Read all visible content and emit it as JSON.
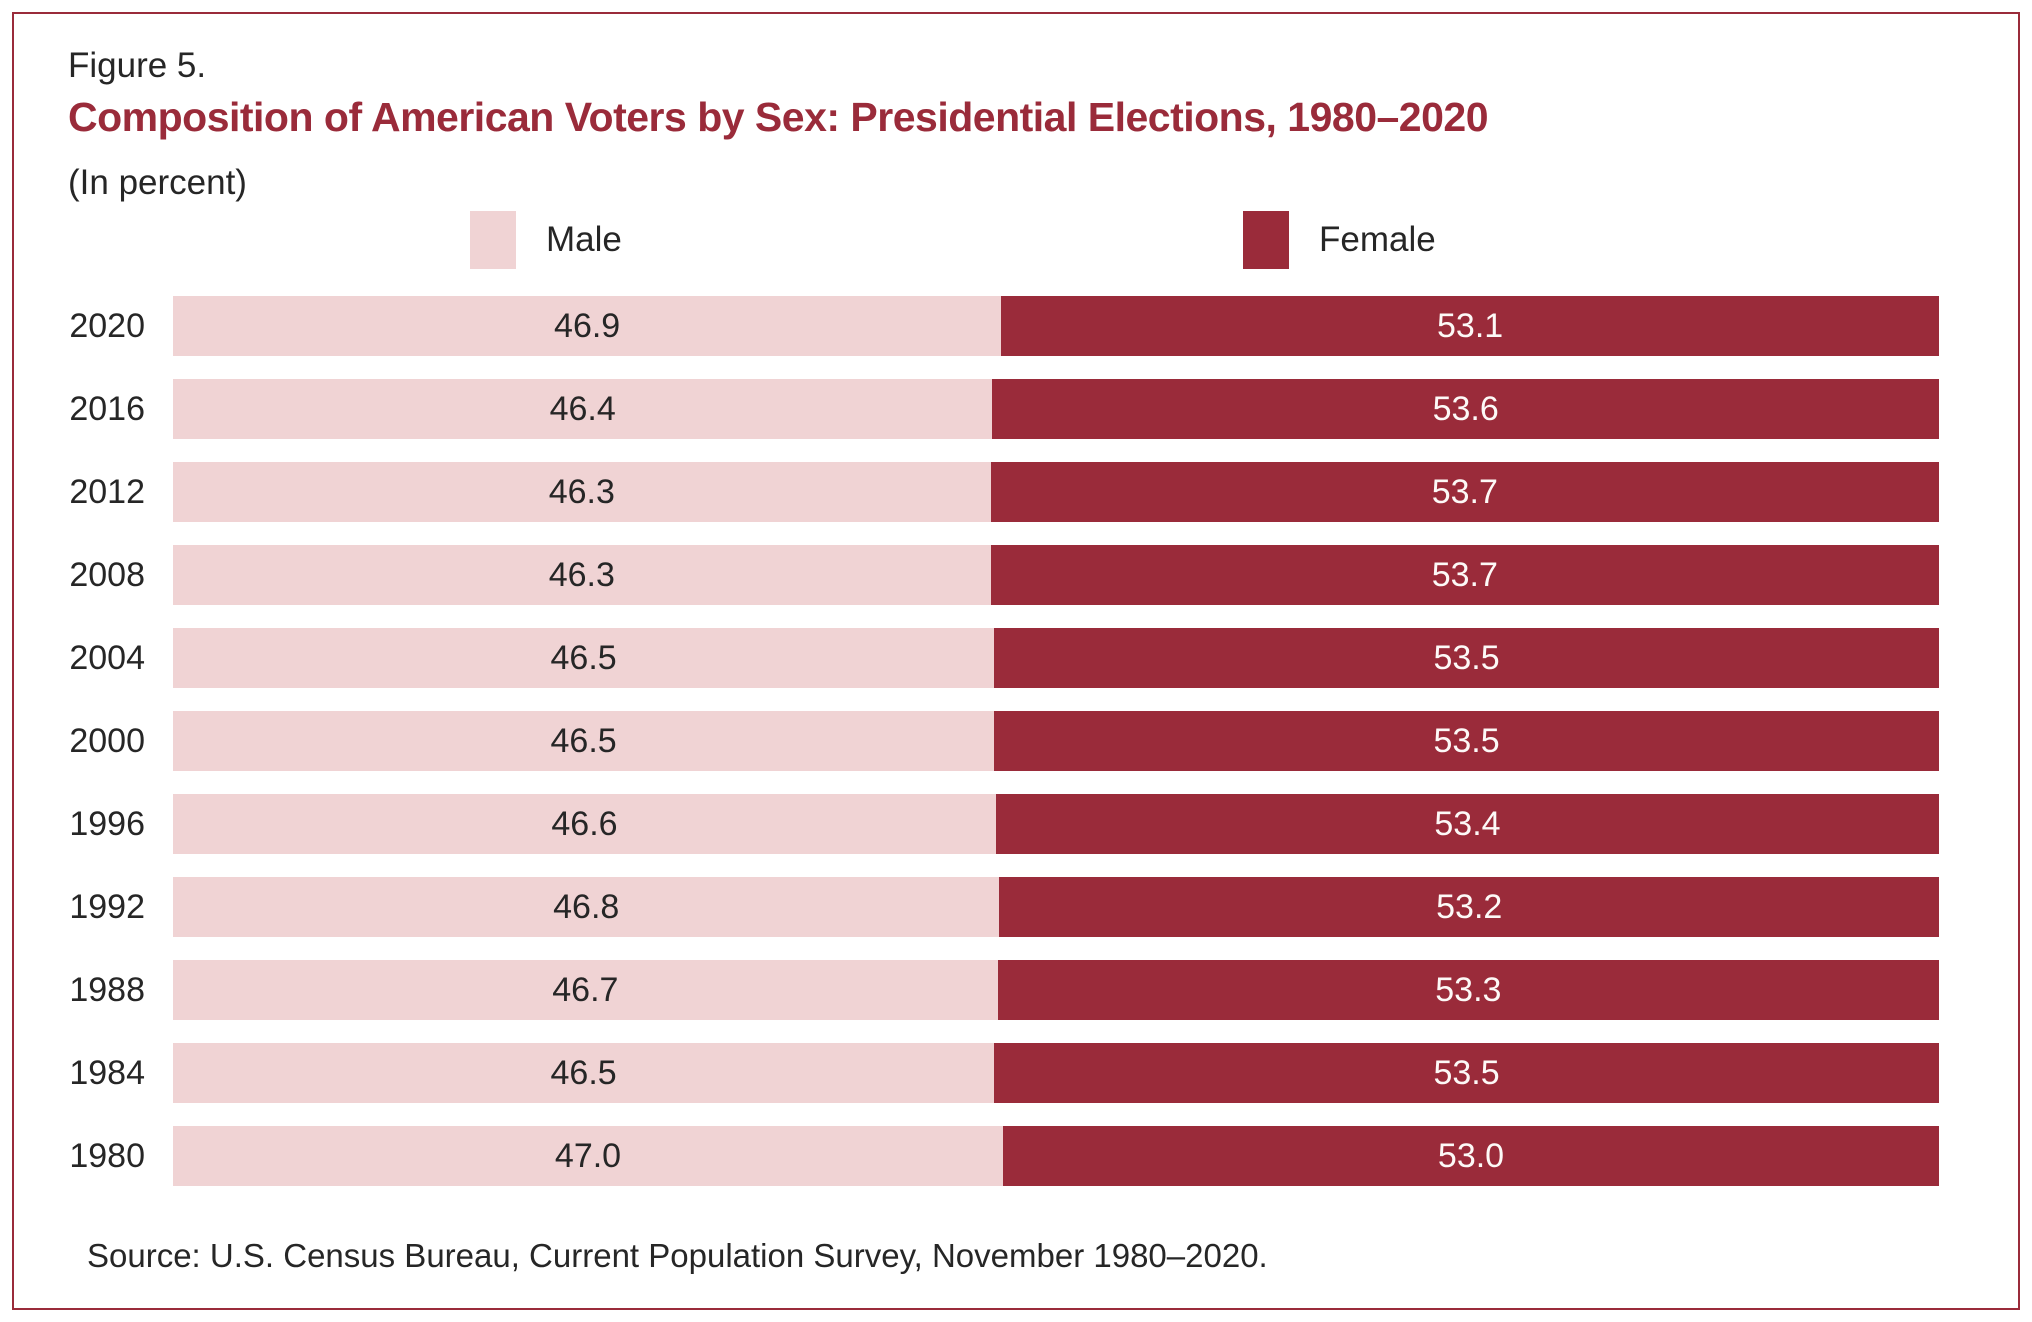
{
  "header": {
    "figure_label": "Figure 5.",
    "title": "Composition of American Voters by Sex: Presidential Elections, 1980–2020",
    "subtitle": "(In percent)"
  },
  "legend": {
    "items": [
      {
        "label": "Male",
        "color": "#f0d3d4"
      },
      {
        "label": "Female",
        "color": "#9a2b3a"
      }
    ]
  },
  "colors": {
    "male_bar": "#f0d3d4",
    "female_bar": "#9a2b3a",
    "accent_red": "#9a2b3a",
    "text_dark": "#262626",
    "value_on_dark": "#fdf9f7",
    "background": "#ffffff"
  },
  "source": "Source: U.S. Census Bureau, Current Population Survey, November 1980–2020.",
  "chart_data": {
    "type": "bar",
    "orientation": "horizontal",
    "stacked": true,
    "title": "Composition of American Voters by Sex: Presidential Elections, 1980–2020",
    "subtitle": "(In percent)",
    "categories": [
      "2020",
      "2016",
      "2012",
      "2008",
      "2004",
      "2000",
      "1996",
      "1992",
      "1988",
      "1984",
      "1980"
    ],
    "series": [
      {
        "name": "Male",
        "color": "#f0d3d4",
        "values": [
          46.9,
          46.4,
          46.3,
          46.3,
          46.5,
          46.5,
          46.6,
          46.8,
          46.7,
          46.5,
          47.0
        ]
      },
      {
        "name": "Female",
        "color": "#9a2b3a",
        "values": [
          53.1,
          53.6,
          53.7,
          53.7,
          53.5,
          53.5,
          53.4,
          53.2,
          53.3,
          53.5,
          53.0
        ]
      }
    ],
    "xlim": [
      0,
      100
    ],
    "value_labels": "inside-center",
    "value_label_format": "0.1f",
    "legend_position": "top",
    "grid": false
  }
}
